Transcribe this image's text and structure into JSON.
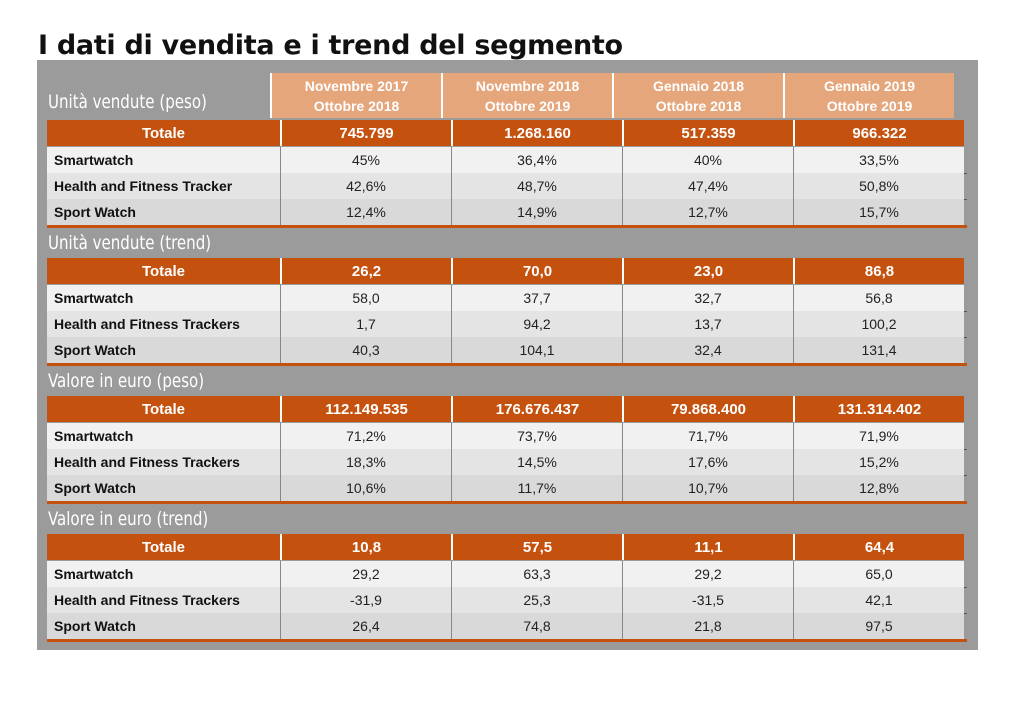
{
  "title": "I dati di vendita e i trend del segmento",
  "columns": [
    {
      "line1": "Novembre 2017",
      "line2": "Ottobre 2018"
    },
    {
      "line1": "Novembre 2018",
      "line2": "Ottobre 2019"
    },
    {
      "line1": "Gennaio 2018",
      "line2": "Ottobre 2018"
    },
    {
      "line1": "Gennaio 2019",
      "line2": "Ottobre 2019"
    }
  ],
  "colors": {
    "orange": "#c5510f",
    "peach": "#e5a67c",
    "panel": "#9b9b9b"
  },
  "sections": [
    {
      "title": "Unità vendute (peso)",
      "total_label": "Totale",
      "totals": [
        "745.799",
        "1.268.160",
        "517.359",
        "966.322"
      ],
      "rows": [
        {
          "label": "Smartwatch",
          "values": [
            "45%",
            "36,4%",
            "40%",
            "33,5%"
          ]
        },
        {
          "label": "Health and Fitness Tracker",
          "values": [
            "42,6%",
            "48,7%",
            "47,4%",
            "50,8%"
          ]
        },
        {
          "label": "Sport Watch",
          "values": [
            "12,4%",
            "14,9%",
            "12,7%",
            "15,7%"
          ]
        }
      ]
    },
    {
      "title": "Unità vendute (trend)",
      "total_label": "Totale",
      "totals": [
        "26,2",
        "70,0",
        "23,0",
        "86,8"
      ],
      "rows": [
        {
          "label": "Smartwatch",
          "values": [
            "58,0",
            "37,7",
            "32,7",
            "56,8"
          ]
        },
        {
          "label": "Health and Fitness Trackers",
          "values": [
            "1,7",
            "94,2",
            "13,7",
            "100,2"
          ]
        },
        {
          "label": "Sport Watch",
          "values": [
            "40,3",
            "104,1",
            "32,4",
            "131,4"
          ]
        }
      ]
    },
    {
      "title": "Valore in euro (peso)",
      "total_label": "Totale",
      "totals": [
        "112.149.535",
        "176.676.437",
        "79.868.400",
        "131.314.402"
      ],
      "rows": [
        {
          "label": "Smartwatch",
          "values": [
            "71,2%",
            "73,7%",
            "71,7%",
            "71,9%"
          ]
        },
        {
          "label": "Health and Fitness Trackers",
          "values": [
            "18,3%",
            "14,5%",
            "17,6%",
            "15,2%"
          ]
        },
        {
          "label": "Sport Watch",
          "values": [
            "10,6%",
            "11,7%",
            "10,7%",
            "12,8%"
          ]
        }
      ]
    },
    {
      "title": "Valore in euro (trend)",
      "total_label": "Totale",
      "totals": [
        "10,8",
        "57,5",
        "11,1",
        "64,4"
      ],
      "rows": [
        {
          "label": "Smartwatch",
          "values": [
            "29,2",
            "63,3",
            "29,2",
            "65,0"
          ]
        },
        {
          "label": "Health and Fitness Trackers",
          "values": [
            "-31,9",
            "25,3",
            "-31,5",
            "42,1"
          ]
        },
        {
          "label": "Sport Watch",
          "values": [
            "26,4",
            "74,8",
            "21,8",
            "97,5"
          ]
        }
      ]
    }
  ]
}
